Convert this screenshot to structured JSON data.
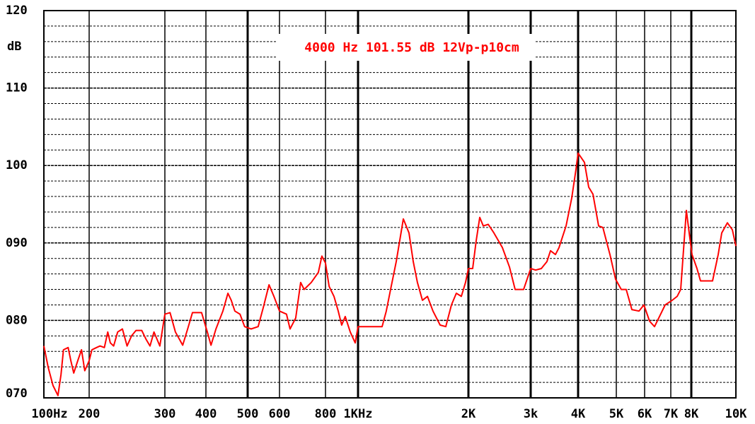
{
  "chart_data": {
    "type": "line",
    "annotation": "4000 Hz 101.55 dB 12Vp-p10cm",
    "y_axis_label": "dB",
    "color": "#ff0000",
    "xlim": [
      100,
      10000
    ],
    "ylim": [
      70,
      120
    ],
    "xticks": [
      {
        "value": 100,
        "label": "100Hz"
      },
      200,
      300,
      400,
      500,
      600,
      800,
      {
        "value": 1000,
        "label": "1KHz"
      },
      {
        "value": 2000,
        "label": "2K"
      },
      {
        "value": 3000,
        "label": "3k"
      },
      {
        "value": 4000,
        "label": "4K"
      },
      {
        "value": 5000,
        "label": "5K"
      },
      {
        "value": 6000,
        "label": "6K"
      },
      {
        "value": 7000,
        "label": "7K"
      },
      {
        "value": 8000,
        "label": "8K"
      },
      {
        "value": 10000,
        "label": "10K"
      }
    ],
    "yticks": [
      {
        "value": 70,
        "label": "070"
      },
      {
        "value": 80,
        "label": "080"
      },
      {
        "value": 90,
        "label": "090"
      },
      100,
      110,
      120
    ],
    "yminor": [
      72,
      74,
      76,
      78,
      82,
      84,
      86,
      88,
      92,
      94,
      96,
      98,
      102,
      104,
      106,
      108,
      112,
      114,
      116,
      118
    ],
    "x": [
      100,
      107,
      115,
      124,
      130,
      135,
      145,
      151,
      158,
      168,
      178,
      187,
      200,
      203,
      208,
      212,
      217,
      221,
      224,
      228,
      233,
      239,
      245,
      251,
      257,
      265,
      271,
      277,
      283,
      292,
      300,
      311,
      323,
      340,
      352,
      364,
      388,
      403,
      411,
      422,
      438,
      450,
      458,
      467,
      480,
      492,
      510,
      531,
      547,
      565,
      581,
      600,
      627,
      641,
      664,
      685,
      700,
      732,
      765,
      782,
      800,
      820,
      848,
      873,
      894,
      916,
      948,
      981,
      1000,
      1163,
      1194,
      1227,
      1271,
      1329,
      1377,
      1414,
      1452,
      1498,
      1546,
      1601,
      1674,
      1735,
      1798,
      1854,
      1913,
      1964,
      2000,
      2056,
      2104,
      2153,
      2203,
      2275,
      2361,
      2495,
      2613,
      2711,
      2865,
      3000,
      3092,
      3200,
      3311,
      3383,
      3487,
      3562,
      3718,
      3848,
      3949,
      4000,
      4152,
      4256,
      4363,
      4509,
      4622,
      4817,
      4980,
      5162,
      5330,
      5527,
      5785,
      5972,
      6178,
      6360,
      6549,
      6770,
      7065,
      7296,
      7466,
      7640,
      7746,
      7890,
      8028,
      8230,
      8377,
      8896,
      9152,
      9316,
      9584,
      9823,
      10000
    ],
    "values": [
      76.7,
      73.9,
      71.6,
      70.3,
      73.0,
      76.2,
      76.5,
      74.8,
      73.2,
      74.8,
      76.2,
      73.5,
      74.8,
      76.2,
      76.5,
      76.7,
      76.5,
      78.5,
      77.1,
      76.7,
      78.5,
      78.9,
      76.7,
      78.0,
      78.7,
      78.7,
      77.6,
      76.7,
      78.5,
      76.7,
      80.8,
      81.0,
      78.5,
      76.8,
      78.9,
      81.0,
      81.0,
      78.5,
      76.8,
      78.9,
      81.2,
      83.5,
      82.6,
      81.2,
      80.8,
      79.2,
      78.9,
      79.2,
      81.7,
      84.6,
      83.1,
      81.2,
      80.8,
      78.9,
      80.3,
      84.9,
      84.0,
      84.9,
      86.2,
      88.3,
      87.4,
      84.4,
      83.1,
      81.2,
      79.4,
      80.5,
      78.5,
      77.1,
      79.2,
      79.2,
      81.2,
      84.0,
      87.6,
      93.1,
      91.3,
      87.6,
      84.9,
      82.6,
      83.1,
      81.2,
      79.4,
      79.2,
      82.0,
      83.5,
      83.1,
      84.9,
      86.7,
      86.7,
      90.3,
      93.3,
      92.2,
      92.4,
      91.3,
      89.4,
      86.9,
      84.0,
      84.0,
      86.7,
      86.5,
      86.7,
      87.6,
      89.0,
      88.5,
      89.4,
      92.2,
      95.8,
      99.5,
      101.6,
      100.4,
      97.2,
      96.3,
      92.2,
      92.0,
      88.5,
      85.3,
      84.0,
      84.0,
      81.4,
      81.2,
      82.0,
      79.9,
      79.2,
      80.5,
      82.0,
      82.6,
      83.1,
      84.0,
      90.4,
      94.2,
      91.3,
      88.5,
      86.7,
      85.1,
      85.1,
      88.5,
      91.3,
      92.6,
      91.7,
      89.6
    ]
  }
}
